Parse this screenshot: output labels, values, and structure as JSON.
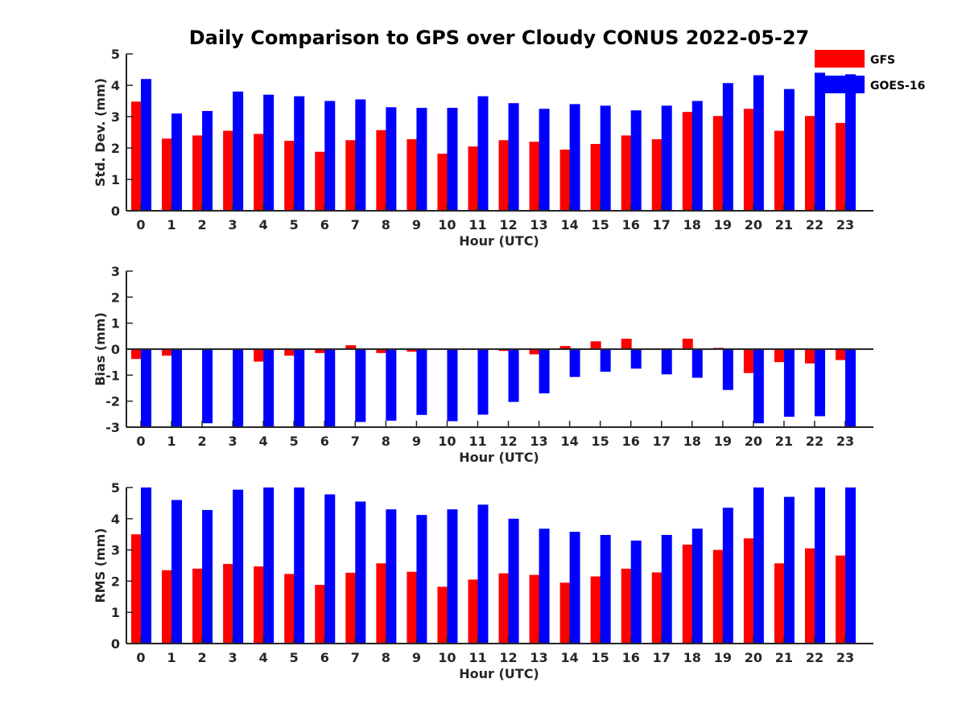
{
  "chart_data": {
    "title": "Daily Comparison to GPS over Cloudy CONUS 2022-05-27",
    "type": "bar",
    "legend": {
      "placement": "top-right",
      "entries": [
        {
          "name": "GFS",
          "color": "#ff0000"
        },
        {
          "name": "GOES-16",
          "color": "#0000ff"
        }
      ]
    },
    "panels": [
      {
        "id": "std",
        "type": "bar",
        "xlabel": "Hour (UTC)",
        "ylabel": "Std. Dev. (mm)",
        "ylim": [
          0,
          5
        ],
        "yticks": [
          0,
          1,
          2,
          3,
          4,
          5
        ],
        "categories": [
          "0",
          "1",
          "2",
          "3",
          "4",
          "5",
          "6",
          "7",
          "8",
          "9",
          "10",
          "11",
          "12",
          "13",
          "14",
          "15",
          "16",
          "17",
          "18",
          "19",
          "20",
          "21",
          "22",
          "23"
        ],
        "series": [
          {
            "name": "GFS",
            "color": "#ff0000",
            "values": [
              3.48,
              2.3,
              2.4,
              2.55,
              2.45,
              2.23,
              1.88,
              2.25,
              2.57,
              2.28,
              1.82,
              2.05,
              2.25,
              2.2,
              1.95,
              2.13,
              2.4,
              2.28,
              3.15,
              3.02,
              3.25,
              2.55,
              3.02,
              2.8
            ]
          },
          {
            "name": "GOES-16",
            "color": "#0000ff",
            "values": [
              4.2,
              3.1,
              3.18,
              3.8,
              3.7,
              3.65,
              3.5,
              3.55,
              3.3,
              3.28,
              3.28,
              3.65,
              3.43,
              3.25,
              3.4,
              3.35,
              3.2,
              3.35,
              3.5,
              4.07,
              4.32,
              3.88,
              4.4,
              4.35
            ]
          }
        ]
      },
      {
        "id": "bias",
        "type": "bar",
        "xlabel": "Hour (UTC)",
        "ylabel": "Bias (mm)",
        "ylim": [
          -3,
          3
        ],
        "yticks": [
          -3,
          -2,
          -1,
          0,
          1,
          2,
          3
        ],
        "categories": [
          "0",
          "1",
          "2",
          "3",
          "4",
          "5",
          "6",
          "7",
          "8",
          "9",
          "10",
          "11",
          "12",
          "13",
          "14",
          "15",
          "16",
          "17",
          "18",
          "19",
          "20",
          "21",
          "22",
          "23"
        ],
        "series": [
          {
            "name": "GFS",
            "color": "#ff0000",
            "values": [
              -0.38,
              -0.25,
              -0.02,
              0.03,
              -0.48,
              -0.25,
              -0.15,
              0.15,
              -0.15,
              -0.1,
              -0.02,
              -0.03,
              -0.07,
              -0.2,
              0.12,
              0.3,
              0.4,
              0.02,
              0.4,
              0.05,
              -0.92,
              -0.5,
              -0.55,
              -0.42
            ]
          },
          {
            "name": "GOES-16",
            "color": "#0000ff",
            "values": [
              -3.0,
              -3.0,
              -2.85,
              -3.0,
              -3.0,
              -3.0,
              -3.0,
              -2.8,
              -2.75,
              -2.53,
              -2.77,
              -2.52,
              -2.03,
              -1.7,
              -1.07,
              -0.87,
              -0.75,
              -0.97,
              -1.1,
              -1.57,
              -2.85,
              -2.6,
              -2.58,
              -3.0
            ]
          }
        ]
      },
      {
        "id": "rms",
        "type": "bar",
        "xlabel": "Hour (UTC)",
        "ylabel": "RMS (mm)",
        "ylim": [
          0,
          5
        ],
        "yticks": [
          0,
          1,
          2,
          3,
          4,
          5
        ],
        "categories": [
          "0",
          "1",
          "2",
          "3",
          "4",
          "5",
          "6",
          "7",
          "8",
          "9",
          "10",
          "11",
          "12",
          "13",
          "14",
          "15",
          "16",
          "17",
          "18",
          "19",
          "20",
          "21",
          "22",
          "23"
        ],
        "series": [
          {
            "name": "GFS",
            "color": "#ff0000",
            "values": [
              3.5,
              2.35,
              2.4,
              2.55,
              2.47,
              2.23,
              1.88,
              2.27,
              2.57,
              2.3,
              1.82,
              2.05,
              2.25,
              2.2,
              1.95,
              2.15,
              2.4,
              2.28,
              3.17,
              3.0,
              3.37,
              2.57,
              3.05,
              2.82
            ]
          },
          {
            "name": "GOES-16",
            "color": "#0000ff",
            "values": [
              5.0,
              4.6,
              4.28,
              4.93,
              5.0,
              5.0,
              4.78,
              4.55,
              4.3,
              4.12,
              4.3,
              4.45,
              4.0,
              3.68,
              3.58,
              3.48,
              3.3,
              3.48,
              3.68,
              4.35,
              5.0,
              4.7,
              5.0,
              5.0
            ]
          }
        ]
      }
    ]
  }
}
